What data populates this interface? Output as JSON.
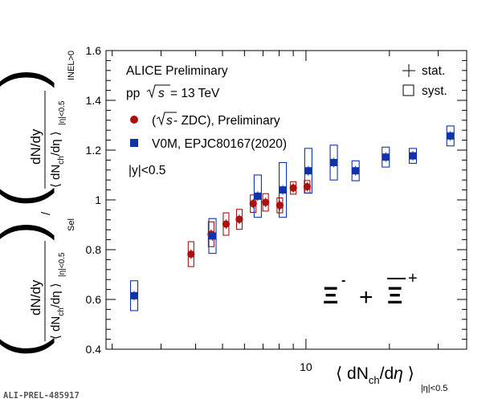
{
  "footer_id": "ALI-PREL-485917",
  "legend": {
    "collab": "ALICE Preliminary",
    "system": "pp",
    "sqrt_s_symbol": "s",
    "energy": "= 13 TeV",
    "stat": "stat.",
    "syst": "syst.",
    "rapidity": "|y|<0.5"
  },
  "particle": {
    "xi_minus": "Ξ",
    "minus_sign": "-",
    "plus_op": "+",
    "xi_plus_bar": "Ξ",
    "plus_sign": "+"
  },
  "chart_data": {
    "type": "scatter",
    "x_scale": "log",
    "xlim": [
      1.9,
      38
    ],
    "ylim": [
      0.4,
      1.6
    ],
    "yticks": [
      "0.4",
      "0.6",
      "0.8",
      "1",
      "1.2",
      "1.4",
      "1.6"
    ],
    "xticks": [
      "10"
    ],
    "xlabel": {
      "prefix": "⟨ dN",
      "sub_ch": "ch",
      "mid": "/d",
      "eta": "η",
      "close": " ⟩",
      "sub_range": "|η|<0.5"
    },
    "ylabel": {
      "open_paren": "(",
      "close_paren": ")",
      "dNdy": "dN/dy",
      "dNch": "⟨ dN",
      "ch": "ch",
      "deta": "/dη ⟩",
      "eta_range": "|η|<0.5",
      "sel": "Sel",
      "inel": "INEL>0",
      "slash": "/"
    },
    "series": [
      {
        "name": "(√s - ZDC), Preliminary",
        "name_prefix": "(",
        "name_sqrt": "s",
        "name_rest": " - ZDC), Preliminary",
        "color": "#aa1111",
        "marker": "circle",
        "points": [
          {
            "x": 3.85,
            "y": 0.782,
            "syst": 0.05
          },
          {
            "x": 4.55,
            "y": 0.862,
            "syst": 0.05
          },
          {
            "x": 5.15,
            "y": 0.903,
            "syst": 0.045
          },
          {
            "x": 5.75,
            "y": 0.922,
            "syst": 0.04
          },
          {
            "x": 6.45,
            "y": 0.985,
            "syst": 0.035
          },
          {
            "x": 7.15,
            "y": 0.99,
            "syst": 0.035
          },
          {
            "x": 8.05,
            "y": 0.978,
            "syst": 0.03
          },
          {
            "x": 9.0,
            "y": 1.048,
            "syst": 0.025
          },
          {
            "x": 10.1,
            "y": 1.053,
            "syst": 0.025
          }
        ]
      },
      {
        "name": "V0M, EPJC80167(2020)",
        "color": "#1133aa",
        "marker": "square",
        "points": [
          {
            "x": 2.4,
            "y": 0.615,
            "syst": 0.06
          },
          {
            "x": 4.6,
            "y": 0.855,
            "syst": 0.07
          },
          {
            "x": 6.7,
            "y": 1.015,
            "syst": 0.085
          },
          {
            "x": 8.25,
            "y": 1.04,
            "syst": 0.11
          },
          {
            "x": 10.2,
            "y": 1.117,
            "syst": 0.09
          },
          {
            "x": 12.6,
            "y": 1.15,
            "syst": 0.07
          },
          {
            "x": 15.1,
            "y": 1.117,
            "syst": 0.04
          },
          {
            "x": 19.4,
            "y": 1.172,
            "syst": 0.04
          },
          {
            "x": 24.3,
            "y": 1.177,
            "syst": 0.03
          },
          {
            "x": 33.2,
            "y": 1.257,
            "syst": 0.04
          }
        ]
      }
    ]
  }
}
